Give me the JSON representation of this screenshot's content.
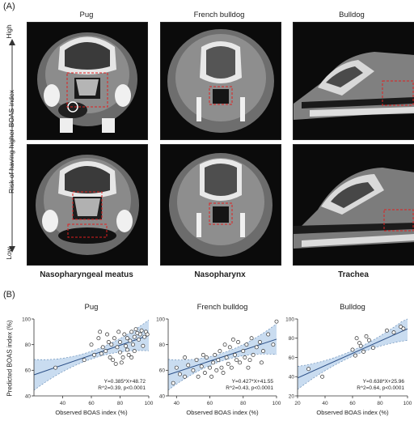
{
  "panel_a": {
    "label": "(A)",
    "columns": [
      "Pug",
      "French bulldog",
      "Bulldog"
    ],
    "axis_high": "High",
    "axis_low": "Low",
    "axis_label": "Risk of having higher BOAS index",
    "row_labels": [
      "Nasopharyngeal meatus",
      "Nasopharynx",
      "Trachea"
    ]
  },
  "panel_b": {
    "label": "(B)",
    "ylabel": "Predicted BOAS index (%)"
  },
  "chart_data": [
    {
      "type": "scatter",
      "title": "Pug",
      "xlabel": "Observed BOAS index (%)",
      "ylabel": "Predicted BOAS index (%)",
      "xlim": [
        20,
        100
      ],
      "ylim": [
        40,
        100
      ],
      "xticks": [
        40,
        60,
        80,
        100
      ],
      "yticks": [
        40,
        60,
        80,
        100
      ],
      "equation": "Y=0.385*X+48.72",
      "stats": "R^2=0.39, p<0.0001",
      "fit": {
        "slope": 0.385,
        "intercept": 48.72
      },
      "x": [
        35,
        55,
        60,
        62,
        65,
        67,
        68,
        70,
        72,
        73,
        74,
        75,
        76,
        78,
        79,
        80,
        80,
        82,
        83,
        84,
        85,
        85,
        86,
        87,
        88,
        89,
        90,
        90,
        92,
        93,
        94,
        95,
        96,
        97,
        98,
        99,
        66,
        71,
        77,
        81,
        88,
        91
      ],
      "y": [
        62,
        68,
        80,
        72,
        85,
        73,
        78,
        75,
        82,
        70,
        80,
        68,
        85,
        78,
        90,
        74,
        82,
        70,
        88,
        79,
        85,
        76,
        72,
        83,
        90,
        80,
        86,
        75,
        89,
        84,
        88,
        91,
        79,
        86,
        90,
        88,
        90,
        88,
        65,
        66,
        70,
        92
      ]
    },
    {
      "type": "scatter",
      "title": "French bulldog",
      "xlabel": "Observed BOAS index (%)",
      "ylabel": "",
      "xlim": [
        35,
        100
      ],
      "ylim": [
        40,
        100
      ],
      "xticks": [
        40,
        60,
        80,
        100
      ],
      "yticks": [
        40,
        60,
        80,
        100
      ],
      "equation": "Y=0.427*X+41.55",
      "stats": "R^2=0.43, p<0.0001",
      "fit": {
        "slope": 0.427,
        "intercept": 41.55
      },
      "x": [
        38,
        40,
        42,
        45,
        47,
        50,
        52,
        53,
        55,
        57,
        58,
        60,
        61,
        62,
        63,
        64,
        65,
        66,
        67,
        68,
        70,
        71,
        72,
        73,
        75,
        76,
        77,
        78,
        80,
        81,
        82,
        84,
        85,
        86,
        88,
        90,
        92,
        95,
        98,
        100,
        45,
        56,
        69,
        74,
        83,
        91
      ],
      "y": [
        50,
        62,
        57,
        55,
        64,
        60,
        68,
        55,
        63,
        58,
        70,
        62,
        55,
        66,
        72,
        60,
        68,
        75,
        62,
        58,
        70,
        65,
        78,
        62,
        72,
        68,
        82,
        66,
        75,
        70,
        80,
        68,
        85,
        72,
        78,
        82,
        75,
        88,
        80,
        98,
        70,
        72,
        80,
        84,
        62,
        66
      ]
    },
    {
      "type": "scatter",
      "title": "Bulldog",
      "xlabel": "Observed BOAS index (%)",
      "ylabel": "",
      "xlim": [
        20,
        100
      ],
      "ylim": [
        20,
        100
      ],
      "xticks": [
        20,
        40,
        60,
        80,
        100
      ],
      "yticks": [
        20,
        40,
        60,
        80,
        100
      ],
      "equation": "Y=0.638*X+25.96",
      "stats": "R^2=0.64, p<0.0001",
      "fit": {
        "slope": 0.638,
        "intercept": 25.96
      },
      "x": [
        28,
        38,
        60,
        62,
        63,
        65,
        66,
        68,
        70,
        72,
        75,
        85,
        90,
        95,
        97
      ],
      "y": [
        48,
        40,
        68,
        62,
        80,
        75,
        72,
        66,
        82,
        78,
        70,
        88,
        86,
        92,
        90
      ]
    }
  ]
}
